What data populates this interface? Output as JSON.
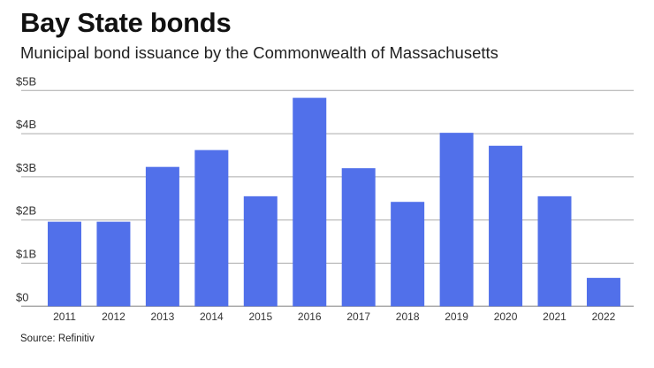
{
  "chart_data": {
    "type": "bar",
    "title": "Bay State bonds",
    "subtitle": "Municipal bond issuance by the Commonwealth of Massachusetts",
    "source": "Source: Refinitiv",
    "xlabel": "",
    "ylabel": "",
    "categories": [
      "2011",
      "2012",
      "2013",
      "2014",
      "2015",
      "2016",
      "2017",
      "2018",
      "2019",
      "2020",
      "2021",
      "2022"
    ],
    "values": [
      1.96,
      1.96,
      3.23,
      3.62,
      2.55,
      4.83,
      3.2,
      2.42,
      4.02,
      3.72,
      2.55,
      0.66
    ],
    "units": "billions USD",
    "ylim": [
      0,
      5
    ],
    "yticks": [
      0,
      1,
      2,
      3,
      4,
      5
    ],
    "ytick_labels": [
      "$0",
      "$1B",
      "$2B",
      "$3B",
      "$4B",
      "$5B"
    ],
    "grid": true,
    "bar_color": "#5170EA",
    "grid_color": "#AAAAAA"
  }
}
